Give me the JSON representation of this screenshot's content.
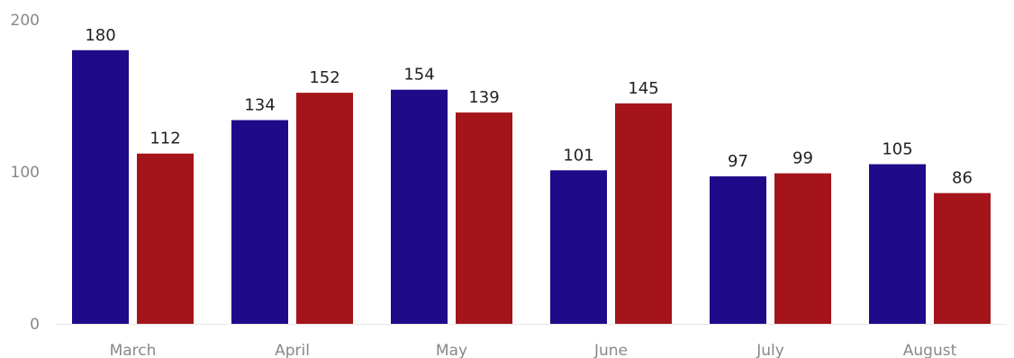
{
  "chart_data": {
    "type": "bar",
    "title": "",
    "xlabel": "",
    "ylabel": "",
    "categories": [
      "March",
      "April",
      "May",
      "June",
      "July",
      "August"
    ],
    "series": [
      {
        "values": [
          180,
          134,
          154,
          101,
          97,
          105
        ],
        "color": "#1f0a8a"
      },
      {
        "values": [
          112,
          152,
          139,
          145,
          99,
          86
        ],
        "color": "#a5141a"
      }
    ],
    "ylim": [
      0,
      200
    ],
    "yticks": [
      "0",
      "100",
      "200"
    ],
    "grid": false,
    "legend": "none",
    "axis_color": "#e6e6e6"
  }
}
